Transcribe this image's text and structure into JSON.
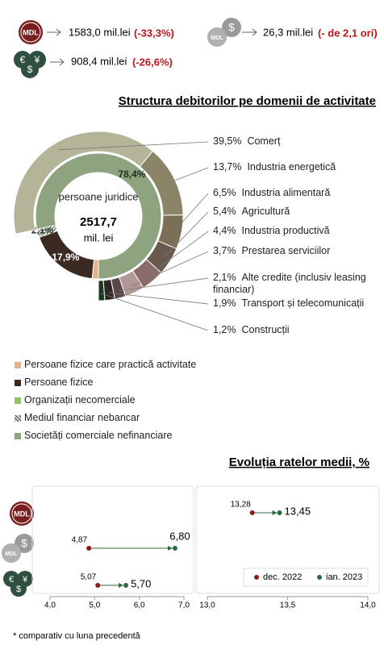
{
  "indicators": [
    {
      "value": "1583,0 mil.lei",
      "change": "(-33,3%)"
    },
    {
      "value": "26,3 mil.lei",
      "change": "(- de 2,1 ori)"
    },
    {
      "value": "908,4 mil.lei",
      "change": "(-26,6%)"
    }
  ],
  "icon_text": "MDL",
  "chart_data": [
    {
      "type": "donut",
      "title": "Structura debitorilor pe domenii de activitate",
      "center_label": "persoane juridice",
      "center_value": "2517,7",
      "center_unit": "mil. lei",
      "categories": [
        "Persoane fizice care practică activitate",
        "Persoane fizice",
        "Organizații necomerciale",
        "Mediul financiar nebancar",
        "Societăți comerciale nefinanciare"
      ],
      "values": [
        1.6,
        17.9,
        null,
        2.1,
        78.4
      ],
      "value_labels": [
        "1,6%",
        "17,9%",
        null,
        "2,1%",
        "78,4%"
      ],
      "colors": [
        "#e3b48c",
        "#3b2a22",
        "#9cbf6a",
        "#8c8c84",
        "#8ea480"
      ],
      "patterns": [
        null,
        null,
        null,
        "hatch",
        null
      ],
      "outer": {
        "categories": [
          "Comerț",
          "Industria energetică",
          "Industria alimentară",
          "Agricultură",
          "Industria productivă",
          "Prestarea serviciilor",
          "Alte credite (inclusiv leasing financiar)",
          "Transport și telecomunicații",
          "Construcții"
        ],
        "values": [
          39.5,
          13.7,
          6.5,
          5.4,
          4.4,
          3.7,
          2.1,
          1.9,
          1.2
        ],
        "value_labels": [
          "39,5%",
          "13,7%",
          "6,5%",
          "5,4%",
          "4,4%",
          "3,7%",
          "2,1%",
          "1,9%",
          "1,2%"
        ],
        "colors": [
          "#b4b598",
          "#8b8466",
          "#7b6f58",
          "#6a5a4e",
          "#8a6b6b",
          "#b29797",
          "#5a4848",
          "#2f2626",
          "#1c3a1c"
        ]
      }
    },
    {
      "type": "dumbbell",
      "title": "Evoluția ratelor medii, %",
      "xlim": [
        4.0,
        7.0
      ],
      "xticks": [
        {
          "value": 4.0,
          "label": "4,0"
        },
        {
          "value": 5.0,
          "label": "5,0"
        },
        {
          "value": 6.0,
          "label": "6,0"
        },
        {
          "value": 7.0,
          "label": "7,0"
        }
      ],
      "series": [
        {
          "color": "#8b1a1a",
          "values": [
            null,
            4.87,
            5.07
          ],
          "value_labels": [
            null,
            "4,87",
            "5,07"
          ]
        },
        {
          "color": "#2e6b3a",
          "values": [
            null,
            6.8,
            5.7
          ],
          "value_labels": [
            null,
            "6,80",
            "5,70"
          ]
        }
      ]
    },
    {
      "type": "dumbbell",
      "legend": "bottom-right",
      "xlim": [
        13.0,
        14.0
      ],
      "xticks": [
        {
          "value": 13.0,
          "label": "13,0"
        },
        {
          "value": 13.5,
          "label": "13,5"
        },
        {
          "value": 14.0,
          "label": "14,0"
        }
      ],
      "series": [
        {
          "name": "dec. 2022",
          "color": "#8b1a1a",
          "values": [
            13.28,
            null,
            null
          ],
          "value_labels": [
            "13,28",
            null,
            null
          ]
        },
        {
          "name": "ian. 2023",
          "color": "#2e6b3a",
          "values": [
            13.45,
            null,
            null
          ],
          "value_labels": [
            "13,45",
            null,
            null
          ]
        }
      ]
    }
  ],
  "footnote": "* comparativ cu luna precedentă"
}
